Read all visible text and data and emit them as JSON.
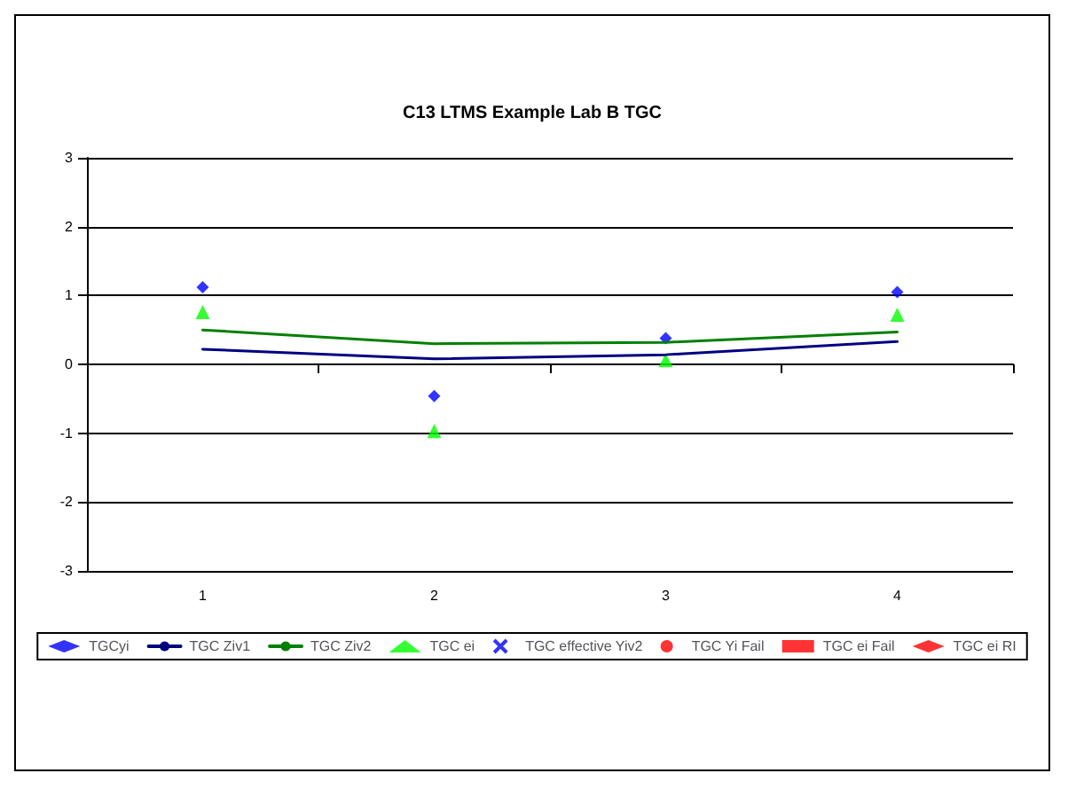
{
  "chart_data": {
    "type": "scatter",
    "title": "C13 LTMS Example Lab B TGC",
    "categories": [
      "1",
      "2",
      "3",
      "4"
    ],
    "series": [
      {
        "name": "TGCyi",
        "marker": "diamond",
        "color": "#0000ff",
        "values": [
          1.12,
          -0.46,
          0.38,
          1.05
        ]
      },
      {
        "name": "TGC Ziv1",
        "type": "line",
        "marker": "none",
        "color": "#000080",
        "values": [
          0.22,
          0.08,
          0.14,
          0.33
        ]
      },
      {
        "name": "TGC Ziv2",
        "type": "line",
        "marker": "none",
        "color": "#008000",
        "values": [
          0.5,
          0.3,
          0.32,
          0.47
        ]
      },
      {
        "name": "TGC ei",
        "marker": "triangle",
        "color": "#00ff00",
        "values": [
          0.76,
          -0.97,
          0.06,
          0.72
        ]
      },
      {
        "name": "TGC effective Yiv2",
        "marker": "cross",
        "color": "#0000ff",
        "values": [
          null,
          null,
          null,
          null
        ]
      },
      {
        "name": "TGC Yi Fail",
        "marker": "circle",
        "color": "#ff0000",
        "values": [
          null,
          null,
          null,
          null
        ]
      },
      {
        "name": "TGC ei Fail",
        "marker": "square",
        "color": "#ff0000",
        "values": [
          null,
          null,
          null,
          null
        ]
      },
      {
        "name": "TGC ei RI",
        "marker": "diamond",
        "color": "#ff0000",
        "values": [
          null,
          null,
          null,
          null
        ]
      }
    ],
    "ylim": [
      -3,
      3
    ],
    "yticks": [
      -3,
      -2,
      -1,
      0,
      1,
      2,
      3
    ],
    "grid": "y",
    "legend": "bottom"
  }
}
